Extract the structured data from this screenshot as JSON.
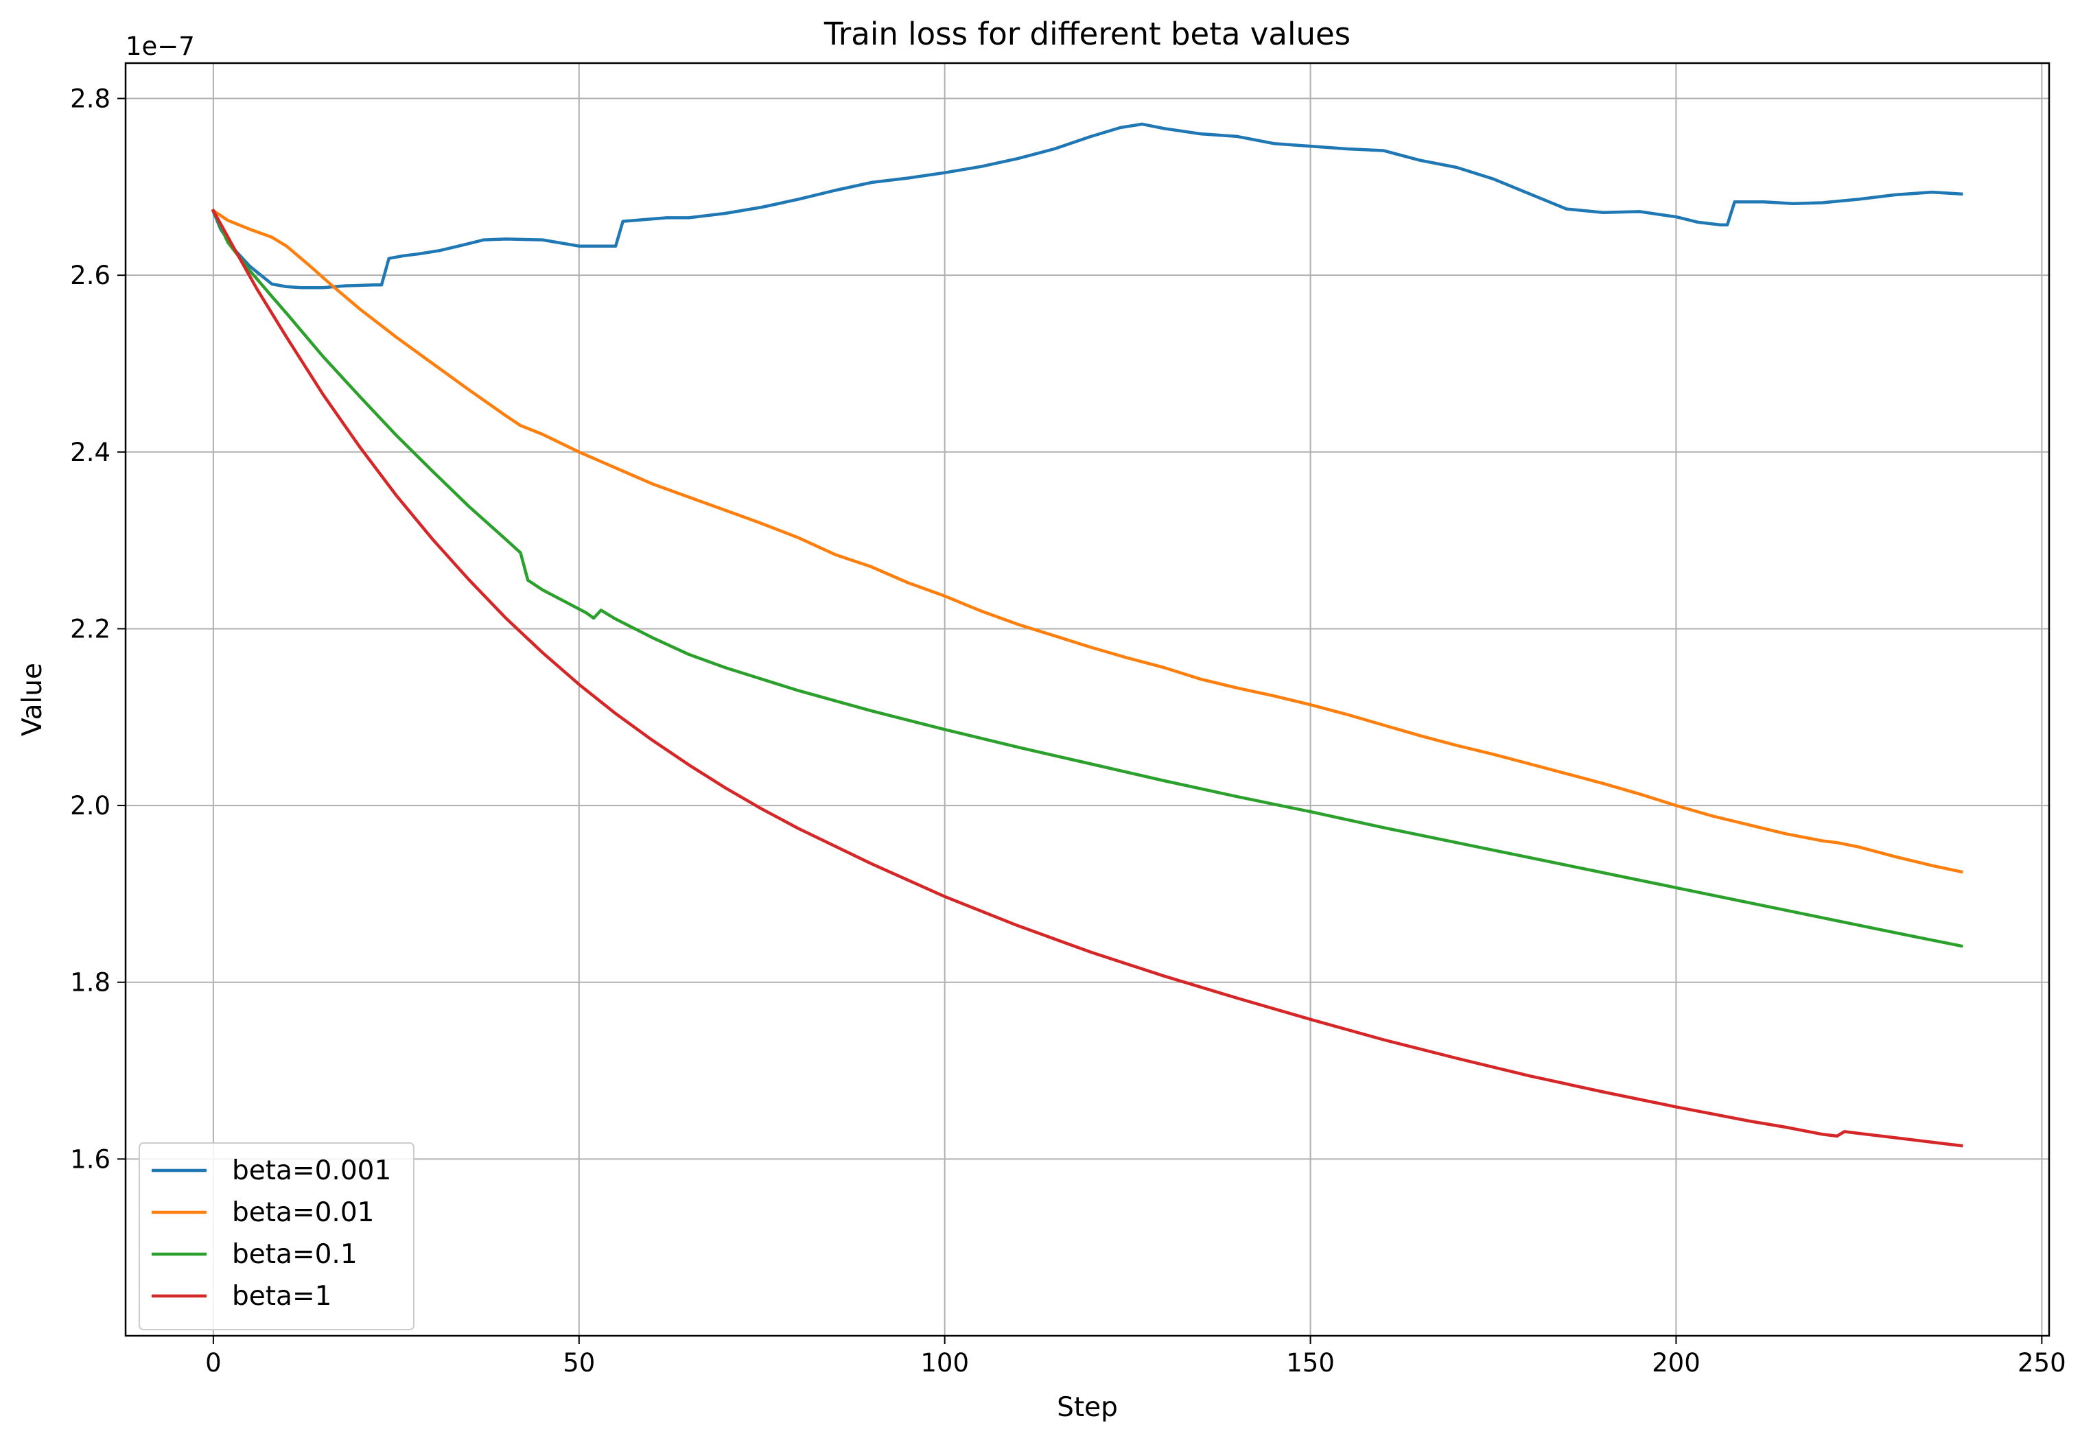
{
  "chart_data": {
    "type": "line",
    "title": "Train loss for different beta values",
    "xlabel": "Step",
    "ylabel": "Value",
    "y_offset_label": "1e−7",
    "xlim": [
      -12,
      251
    ],
    "ylim": [
      1.4,
      2.84
    ],
    "xticks": [
      0,
      50,
      100,
      150,
      200,
      250
    ],
    "xtick_labels": [
      "0",
      "50",
      "100",
      "150",
      "200",
      "250"
    ],
    "yticks": [
      1.6,
      1.8,
      2.0,
      2.2,
      2.4,
      2.6,
      2.8
    ],
    "ytick_labels": [
      "1.6",
      "1.8",
      "2.0",
      "2.2",
      "2.4",
      "2.6",
      "2.8"
    ],
    "grid": true,
    "legend_position": "lower-left",
    "series": [
      {
        "name": "beta=0.001",
        "color": "#1f77b4",
        "x": [
          0,
          1,
          3,
          5,
          8,
          10,
          12,
          15,
          18,
          22,
          23,
          24,
          26,
          28,
          31,
          34,
          37,
          40,
          45,
          50,
          53,
          55,
          56,
          59,
          62,
          65,
          70,
          75,
          80,
          85,
          90,
          95,
          100,
          105,
          110,
          115,
          120,
          124,
          127,
          130,
          135,
          140,
          145,
          150,
          155,
          160,
          165,
          170,
          175,
          180,
          185,
          190,
          195,
          200,
          203,
          206,
          207,
          208,
          212,
          216,
          220,
          225,
          230,
          235,
          239
        ],
        "y": [
          2.672,
          2.652,
          2.628,
          2.61,
          2.59,
          2.587,
          2.586,
          2.586,
          2.588,
          2.589,
          2.589,
          2.619,
          2.622,
          2.624,
          2.628,
          2.634,
          2.64,
          2.641,
          2.64,
          2.633,
          2.633,
          2.633,
          2.661,
          2.663,
          2.665,
          2.665,
          2.67,
          2.677,
          2.686,
          2.696,
          2.705,
          2.71,
          2.716,
          2.723,
          2.732,
          2.743,
          2.757,
          2.767,
          2.771,
          2.766,
          2.76,
          2.757,
          2.749,
          2.746,
          2.743,
          2.741,
          2.73,
          2.722,
          2.709,
          2.692,
          2.675,
          2.671,
          2.672,
          2.666,
          2.66,
          2.657,
          2.657,
          2.683,
          2.683,
          2.681,
          2.682,
          2.686,
          2.691,
          2.694,
          2.692
        ]
      },
      {
        "name": "beta=0.01",
        "color": "#ff7f0e",
        "x": [
          0,
          2,
          5,
          8,
          10,
          13,
          16,
          20,
          25,
          30,
          35,
          40,
          42,
          45,
          50,
          55,
          60,
          65,
          70,
          75,
          80,
          85,
          90,
          95,
          100,
          105,
          110,
          115,
          120,
          125,
          130,
          135,
          140,
          145,
          150,
          155,
          160,
          165,
          170,
          175,
          180,
          185,
          190,
          195,
          200,
          205,
          210,
          215,
          220,
          222,
          225,
          230,
          235,
          239
        ],
        "y": [
          2.673,
          2.662,
          2.652,
          2.643,
          2.633,
          2.612,
          2.59,
          2.562,
          2.53,
          2.5,
          2.47,
          2.441,
          2.43,
          2.42,
          2.4,
          2.382,
          2.364,
          2.349,
          2.334,
          2.319,
          2.303,
          2.284,
          2.27,
          2.252,
          2.237,
          2.22,
          2.205,
          2.192,
          2.179,
          2.167,
          2.156,
          2.143,
          2.133,
          2.124,
          2.114,
          2.103,
          2.091,
          2.079,
          2.068,
          2.058,
          2.047,
          2.036,
          2.025,
          2.013,
          2.0,
          1.988,
          1.978,
          1.968,
          1.96,
          1.958,
          1.953,
          1.942,
          1.932,
          1.925
        ]
      },
      {
        "name": "beta=0.1",
        "color": "#2ca02c",
        "x": [
          0,
          2,
          5,
          8,
          10,
          15,
          20,
          25,
          30,
          35,
          40,
          42,
          43,
          45,
          48,
          51,
          52,
          53,
          55,
          60,
          65,
          70,
          75,
          80,
          90,
          100,
          110,
          120,
          130,
          140,
          150,
          160,
          170,
          180,
          190,
          200,
          210,
          220,
          230,
          239
        ],
        "y": [
          2.673,
          2.637,
          2.605,
          2.576,
          2.557,
          2.508,
          2.463,
          2.419,
          2.378,
          2.338,
          2.301,
          2.286,
          2.255,
          2.244,
          2.231,
          2.218,
          2.212,
          2.221,
          2.211,
          2.19,
          2.171,
          2.156,
          2.143,
          2.13,
          2.107,
          2.086,
          2.066,
          2.047,
          2.028,
          2.01,
          1.993,
          1.975,
          1.958,
          1.941,
          1.924,
          1.907,
          1.89,
          1.873,
          1.856,
          1.841
        ]
      },
      {
        "name": "beta=1",
        "color": "#d62728",
        "x": [
          0,
          3,
          6,
          10,
          15,
          20,
          25,
          30,
          35,
          40,
          45,
          50,
          55,
          60,
          65,
          70,
          75,
          80,
          90,
          100,
          110,
          120,
          130,
          140,
          150,
          160,
          170,
          180,
          190,
          200,
          210,
          215,
          220,
          222,
          223,
          225,
          230,
          235,
          239
        ],
        "y": [
          2.673,
          2.628,
          2.584,
          2.53,
          2.465,
          2.406,
          2.351,
          2.301,
          2.255,
          2.212,
          2.173,
          2.137,
          2.104,
          2.074,
          2.046,
          2.02,
          1.996,
          1.974,
          1.934,
          1.897,
          1.864,
          1.834,
          1.807,
          1.782,
          1.758,
          1.735,
          1.714,
          1.694,
          1.676,
          1.659,
          1.643,
          1.636,
          1.628,
          1.626,
          1.631,
          1.629,
          1.624,
          1.619,
          1.615
        ]
      }
    ]
  }
}
